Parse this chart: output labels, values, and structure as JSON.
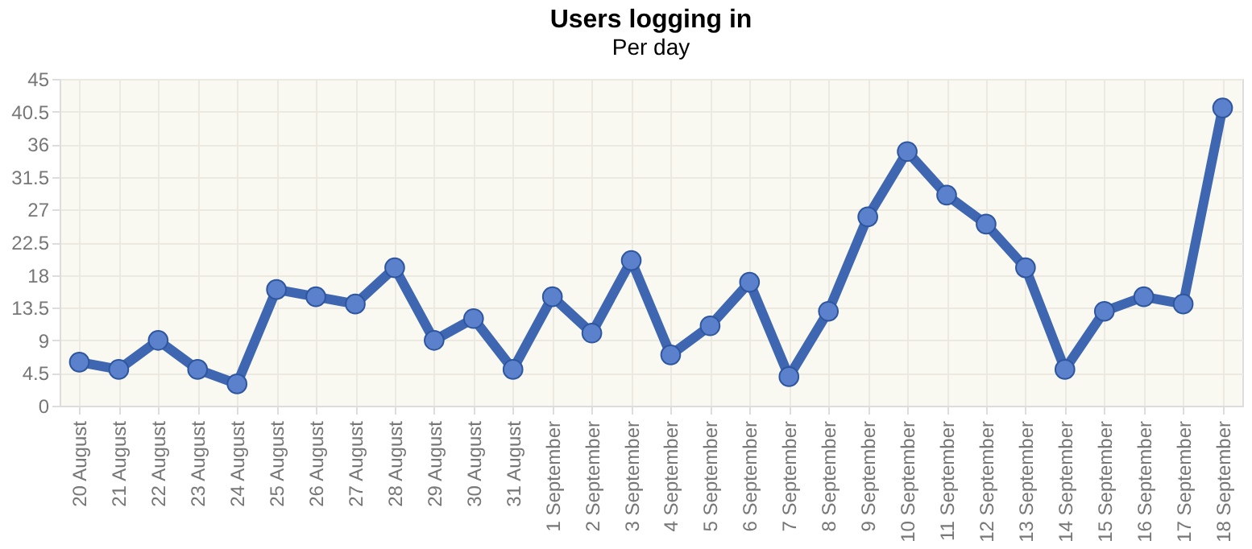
{
  "chart_data": {
    "type": "line",
    "title": "Users logging in",
    "subtitle": "Per day",
    "categories": [
      "20 August",
      "21 August",
      "22 August",
      "23 August",
      "24 August",
      "25 August",
      "26 August",
      "27 August",
      "28 August",
      "29 August",
      "30 August",
      "31 August",
      "1 September",
      "2 September",
      "3 September",
      "4 September",
      "5 September",
      "6 September",
      "7 September",
      "8 September",
      "9 September",
      "10 September",
      "11 September",
      "12 September",
      "13 September",
      "14 September",
      "15 September",
      "16 September",
      "17 September",
      "18 September"
    ],
    "series": [
      {
        "color": "#3f67b1",
        "values": [
          6,
          5,
          9,
          5,
          3,
          16,
          15,
          14,
          19,
          9,
          12,
          5,
          15,
          10,
          20,
          7,
          11,
          17,
          4,
          13,
          26,
          35,
          29,
          25,
          19,
          5,
          13,
          15,
          14,
          41
        ]
      }
    ],
    "ylim": [
      0,
      45
    ],
    "yticks": [
      0,
      4.5,
      9,
      13.5,
      18,
      22.5,
      27,
      31.5,
      36,
      40.5,
      45
    ],
    "grid": true,
    "marker": "circle",
    "line_style": "solid",
    "legend": false
  }
}
